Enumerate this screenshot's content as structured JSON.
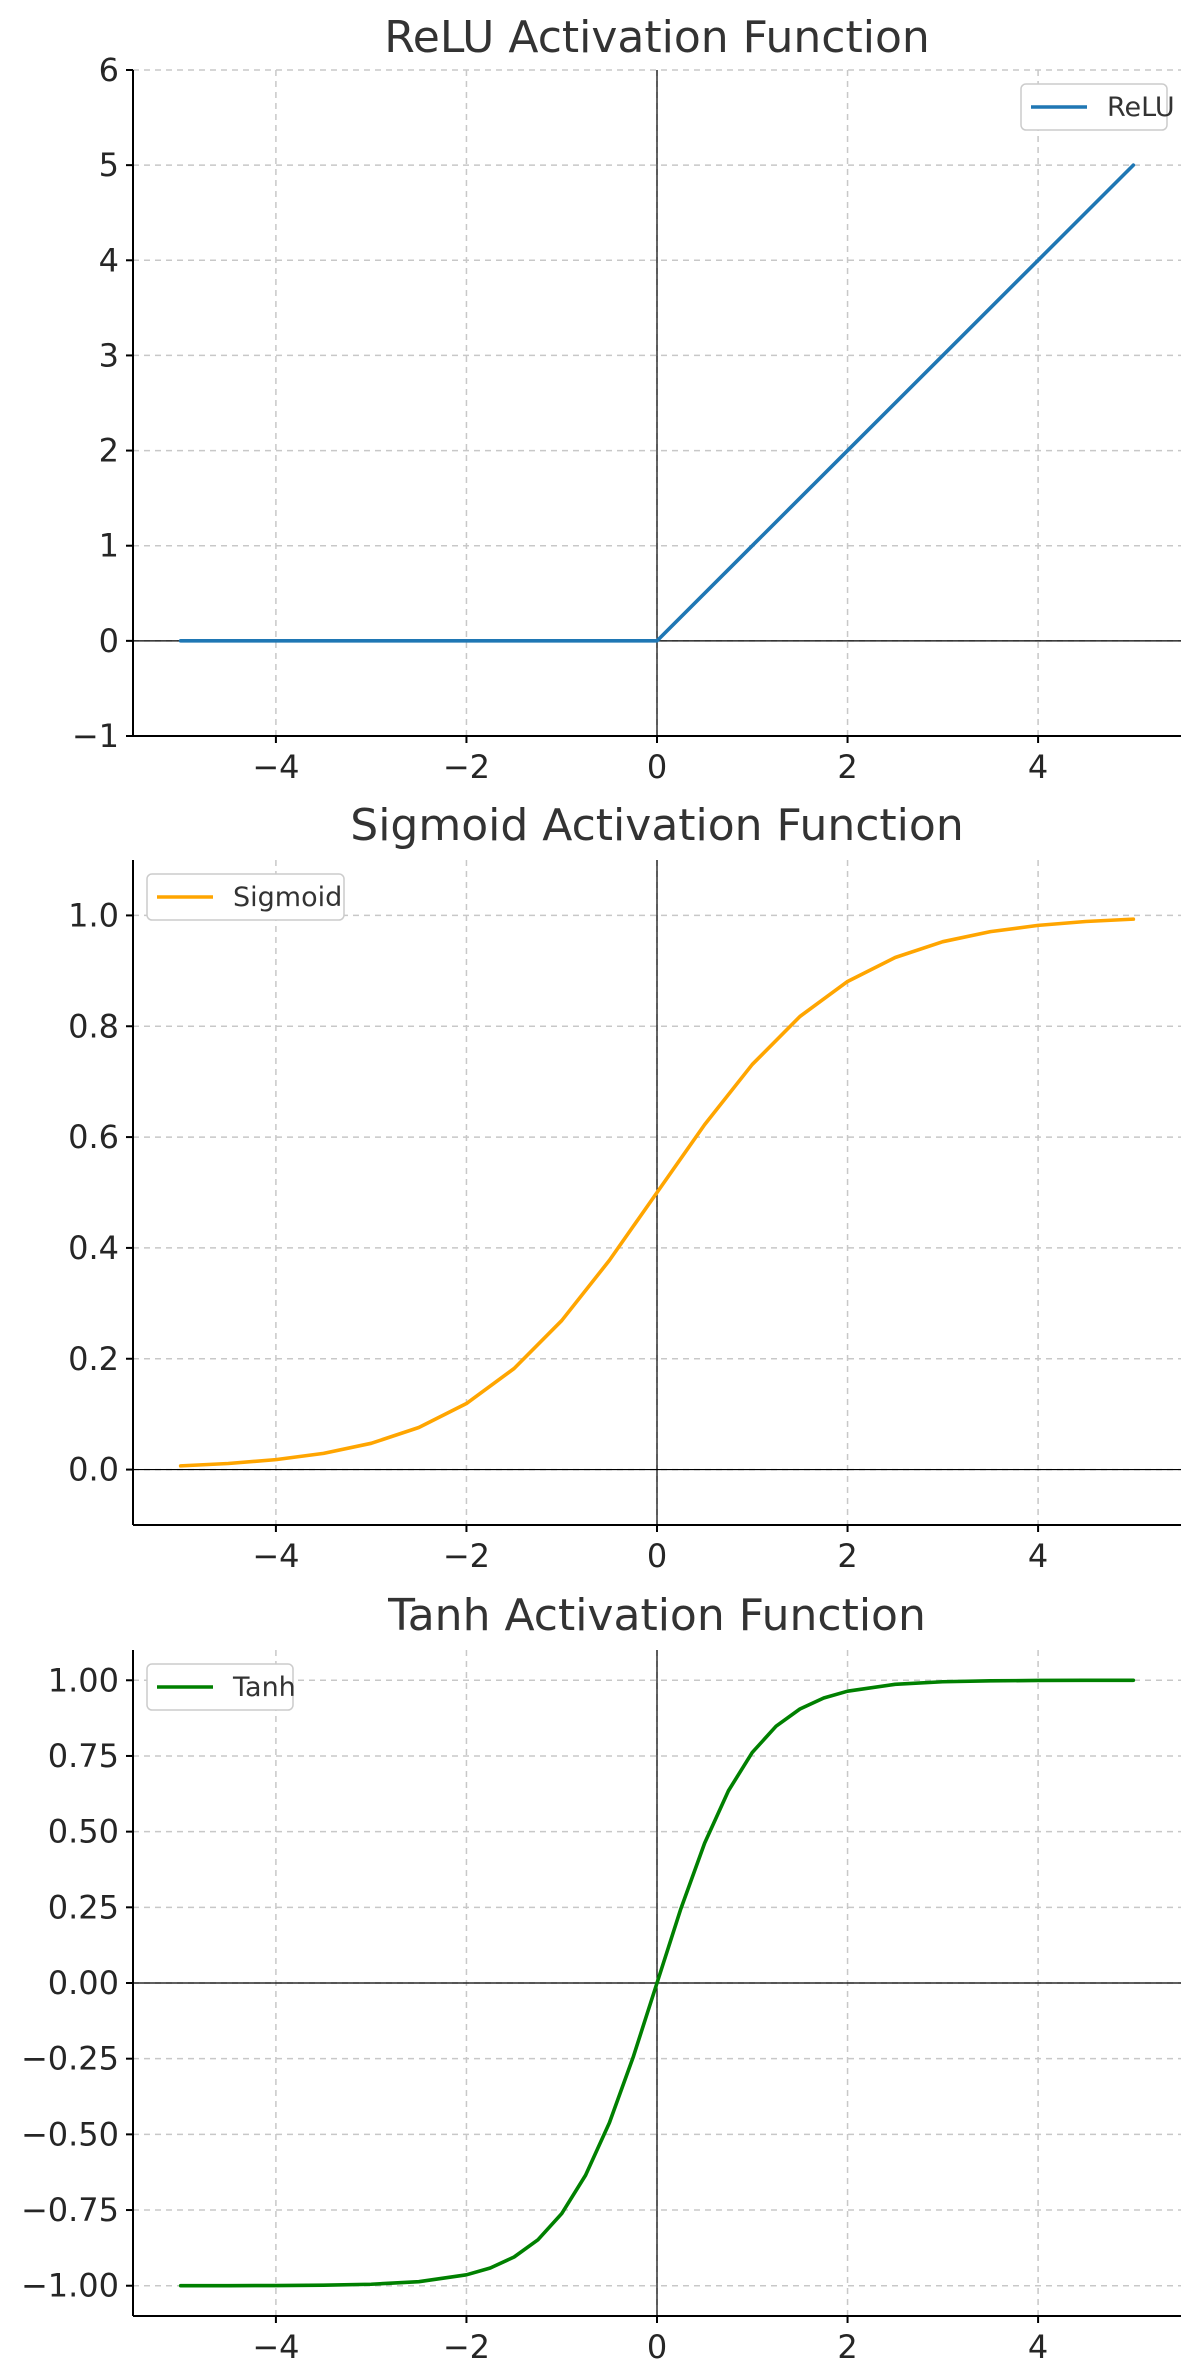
{
  "chart_data": [
    {
      "type": "line",
      "title": "ReLU Activation Function",
      "xlabel": "",
      "ylabel": "",
      "xlim": [
        -5.5,
        5.5
      ],
      "ylim": [
        -1,
        6
      ],
      "xticks": [
        -4,
        -2,
        0,
        2,
        4
      ],
      "xtick_labels": [
        "−4",
        "−2",
        "0",
        "2",
        "4"
      ],
      "yticks": [
        -1,
        0,
        1,
        2,
        3,
        4,
        5,
        6
      ],
      "ytick_labels": [
        "−1",
        "0",
        "1",
        "2",
        "3",
        "4",
        "5",
        "6"
      ],
      "grid": true,
      "zero_lines": true,
      "legend_position": "top-right",
      "series": [
        {
          "name": "ReLU",
          "color": "#1f77b4",
          "x": [
            -5,
            -4,
            -3,
            -2,
            -1,
            0,
            1,
            2,
            3,
            4,
            5
          ],
          "y": [
            0,
            0,
            0,
            0,
            0,
            0,
            1,
            2,
            3,
            4,
            5
          ]
        }
      ]
    },
    {
      "type": "line",
      "title": "Sigmoid Activation Function",
      "xlabel": "",
      "ylabel": "",
      "xlim": [
        -5.5,
        5.5
      ],
      "ylim": [
        -0.1,
        1.1
      ],
      "xticks": [
        -4,
        -2,
        0,
        2,
        4
      ],
      "xtick_labels": [
        "−4",
        "−2",
        "0",
        "2",
        "4"
      ],
      "yticks": [
        0.0,
        0.2,
        0.4,
        0.6,
        0.8,
        1.0
      ],
      "ytick_labels": [
        "0.0",
        "0.2",
        "0.4",
        "0.6",
        "0.8",
        "1.0"
      ],
      "grid": true,
      "zero_lines": true,
      "legend_position": "top-left",
      "series": [
        {
          "name": "Sigmoid",
          "color": "#ffa500",
          "x": [
            -5,
            -4.5,
            -4,
            -3.5,
            -3,
            -2.5,
            -2,
            -1.5,
            -1,
            -0.5,
            0,
            0.5,
            1,
            1.5,
            2,
            2.5,
            3,
            3.5,
            4,
            4.5,
            5
          ],
          "y": [
            0.0067,
            0.011,
            0.018,
            0.0293,
            0.0474,
            0.0759,
            0.1192,
            0.1824,
            0.2689,
            0.3775,
            0.5,
            0.6225,
            0.7311,
            0.8176,
            0.8808,
            0.9241,
            0.9526,
            0.9707,
            0.982,
            0.989,
            0.9933
          ]
        }
      ]
    },
    {
      "type": "line",
      "title": "Tanh Activation Function",
      "xlabel": "",
      "ylabel": "",
      "xlim": [
        -5.5,
        5.5
      ],
      "ylim": [
        -1.1,
        1.1
      ],
      "xticks": [
        -4,
        -2,
        0,
        2,
        4
      ],
      "xtick_labels": [
        "−4",
        "−2",
        "0",
        "2",
        "4"
      ],
      "yticks": [
        -1.0,
        -0.75,
        -0.5,
        -0.25,
        0.0,
        0.25,
        0.5,
        0.75,
        1.0
      ],
      "ytick_labels": [
        "−1.00",
        "−0.75",
        "−0.50",
        "−0.25",
        "0.00",
        "0.25",
        "0.50",
        "0.75",
        "1.00"
      ],
      "grid": true,
      "zero_lines": true,
      "legend_position": "top-left",
      "series": [
        {
          "name": "Tanh",
          "color": "#008000",
          "x": [
            -5,
            -4.5,
            -4,
            -3.5,
            -3,
            -2.5,
            -2,
            -1.75,
            -1.5,
            -1.25,
            -1,
            -0.75,
            -0.5,
            -0.25,
            0,
            0.25,
            0.5,
            0.75,
            1,
            1.25,
            1.5,
            1.75,
            2,
            2.5,
            3,
            3.5,
            4,
            4.5,
            5
          ],
          "y": [
            -0.9999,
            -0.9998,
            -0.9993,
            -0.9982,
            -0.9951,
            -0.9866,
            -0.964,
            -0.9414,
            -0.9051,
            -0.8483,
            -0.7616,
            -0.6351,
            -0.4621,
            -0.2449,
            0,
            0.2449,
            0.4621,
            0.6351,
            0.7616,
            0.8483,
            0.9051,
            0.9414,
            0.964,
            0.9866,
            0.9951,
            0.9982,
            0.9993,
            0.9998,
            0.9999
          ]
        }
      ]
    }
  ]
}
